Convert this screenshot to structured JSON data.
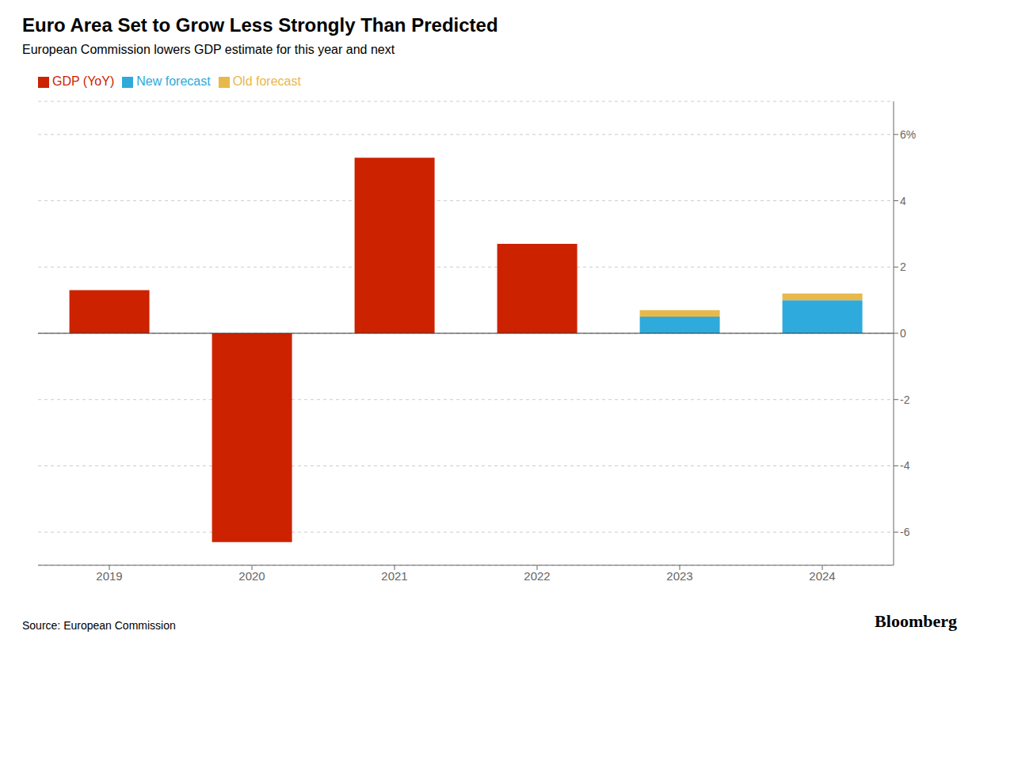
{
  "chart_data": {
    "type": "bar",
    "title": "Euro Area Set to Grow Less Strongly Than Predicted",
    "subtitle": "European Commission lowers GDP estimate for this year and next",
    "annotations": [
      "Source: European Commission",
      "Bloomberg"
    ],
    "categories": [
      "2019",
      "2020",
      "2021",
      "2022",
      "2023",
      "2024"
    ],
    "series": [
      {
        "name": "GDP (YoY)",
        "color": "#cc2200",
        "values": [
          1.3,
          -6.3,
          5.3,
          2.7,
          null,
          null
        ]
      },
      {
        "name": "New forecast",
        "color": "#2eaadc",
        "values": [
          null,
          null,
          null,
          null,
          0.5,
          1.0
        ]
      },
      {
        "name": "Old forecast",
        "color": "#e8b84b",
        "values": [
          null,
          null,
          null,
          null,
          0.2,
          0.2
        ]
      }
    ],
    "stacked": true,
    "ylim": [
      -7,
      7
    ],
    "yticks": [
      -6,
      -4,
      -2,
      0,
      2,
      4,
      {
        "value": 6,
        "label": "6%"
      }
    ],
    "grid": true,
    "legend": "top-left"
  }
}
